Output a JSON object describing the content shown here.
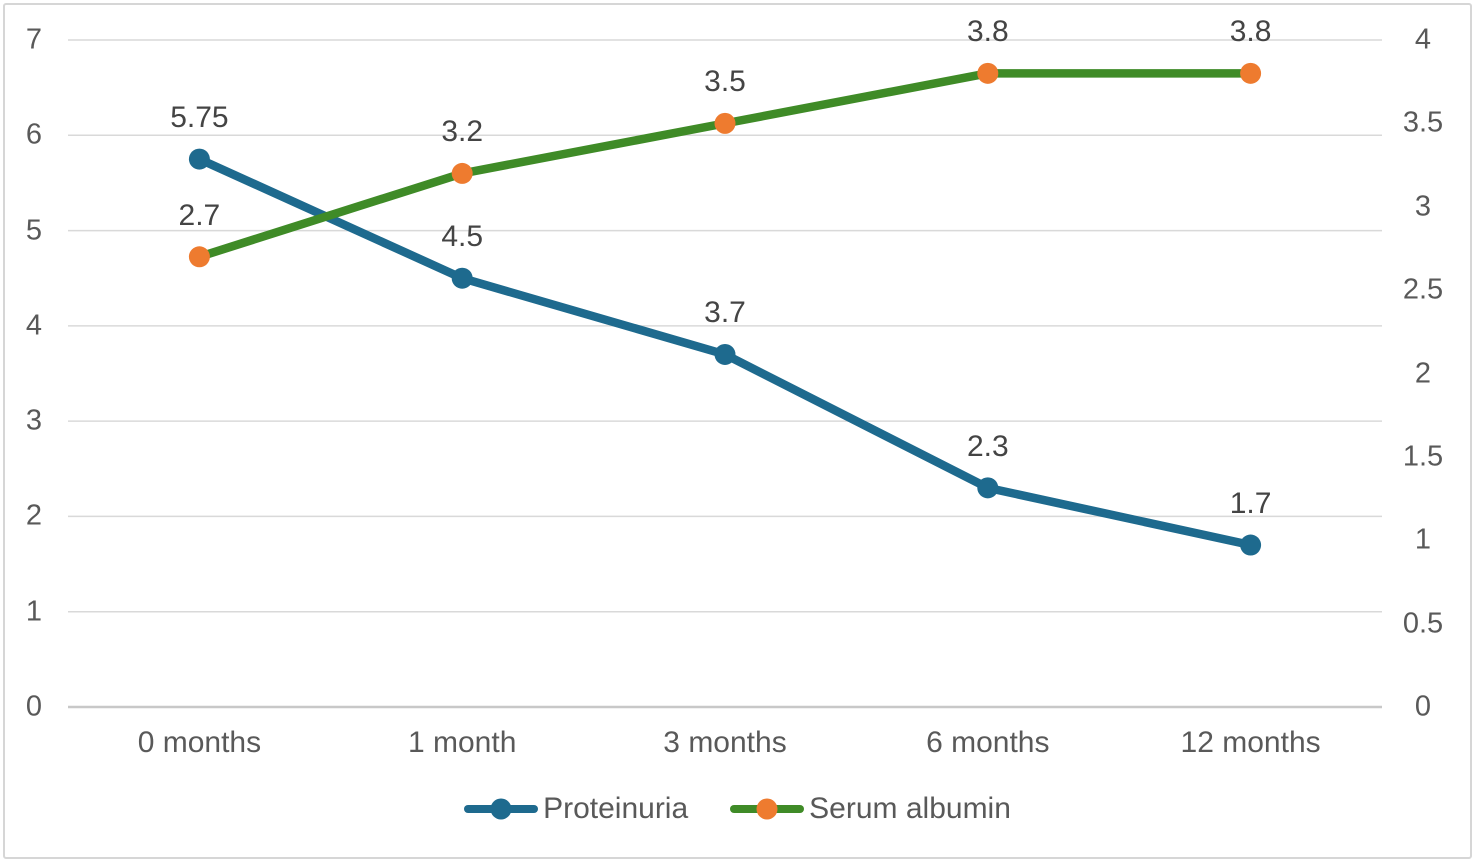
{
  "chart_data": {
    "type": "line",
    "categories": [
      "0 months",
      "1 month",
      "3 months",
      "6 months",
      "12 months"
    ],
    "series": [
      {
        "name": "Proteinuria",
        "axis": "left",
        "values": [
          5.75,
          4.5,
          3.7,
          2.3,
          1.7
        ],
        "data_labels": [
          "5.75",
          "4.5",
          "3.7",
          "2.3",
          "1.7"
        ],
        "line_color": "#1e6a8e",
        "marker_color": "#1e6a8e"
      },
      {
        "name": "Serum albumin",
        "axis": "right",
        "values": [
          2.7,
          3.2,
          3.5,
          3.8,
          3.8
        ],
        "data_labels": [
          "2.7",
          "3.2",
          "3.5",
          "3.8",
          "3.8"
        ],
        "line_color": "#3f8b27",
        "marker_color": "#ee7b2f"
      }
    ],
    "left_axis": {
      "min": 0,
      "max": 7,
      "step": 1,
      "tick_labels": [
        "0",
        "1",
        "2",
        "3",
        "4",
        "5",
        "6",
        "7"
      ]
    },
    "right_axis": {
      "min": 0,
      "max": 4,
      "step": 0.5,
      "tick_labels": [
        "0",
        "0.5",
        "1",
        "1.5",
        "2",
        "2.5",
        "3",
        "3.5",
        "4"
      ]
    },
    "gridlines": "horizontal at left-axis integers",
    "legend_position": "bottom-center",
    "legend_entries": [
      "Proteinuria",
      "Serum albumin"
    ],
    "title": "",
    "xlabel": "",
    "ylabel_left": "",
    "ylabel_right": ""
  },
  "colors": {
    "background": "#ffffff",
    "frame_border": "#d6d6d6",
    "gridline": "#d9d9d9",
    "axis_zero_line": "#c8c8c8",
    "tick_text": "#595959",
    "data_label_text": "#444444",
    "proteinuria": "#1e6a8e",
    "serum_albumin_line": "#3f8b27",
    "serum_albumin_marker": "#ee7b2f"
  }
}
